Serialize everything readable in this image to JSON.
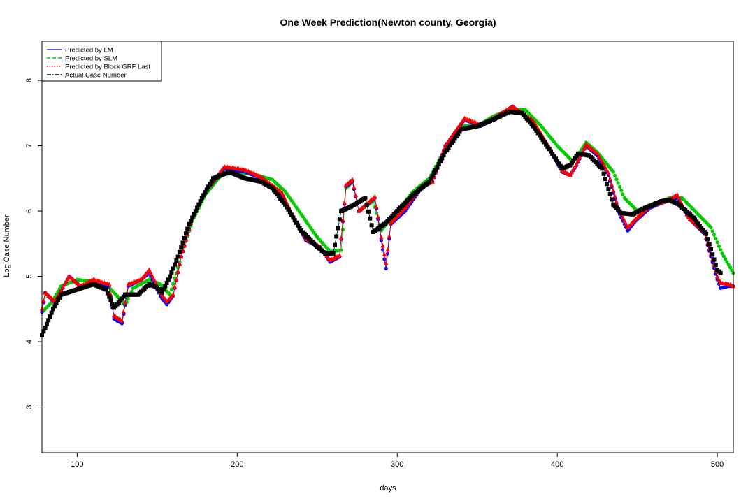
{
  "chart_data": {
    "type": "scatter",
    "title": "One Week Prediction(Newton county, Georgia)",
    "xlabel": "days",
    "ylabel": "Log Case Number",
    "xlim": [
      78,
      510
    ],
    "ylim": [
      2.3,
      8.6
    ],
    "x_ticks": [
      100,
      200,
      300,
      400,
      500
    ],
    "y_ticks": [
      3,
      4,
      5,
      6,
      7,
      8
    ],
    "grid": false,
    "legend_position": "top-left",
    "legend": [
      {
        "label": "Predicted by LM",
        "color": "#0000ff",
        "line": "solid"
      },
      {
        "label": "Predicted by SLM",
        "color": "#00cc00",
        "line": "dashed"
      },
      {
        "label": "Predicted by Block GRF Last",
        "color": "#ff0000",
        "line": "dotted"
      },
      {
        "label": "Actual Case Number",
        "color": "#000000",
        "line": "dashdot"
      }
    ],
    "series": [
      {
        "name": "Actual Case Number",
        "color": "#000000",
        "marker": "square",
        "knots": [
          [
            78,
            4.1
          ],
          [
            85,
            4.5
          ],
          [
            90,
            4.72
          ],
          [
            100,
            4.8
          ],
          [
            110,
            4.88
          ],
          [
            118,
            4.8
          ],
          [
            123,
            4.52
          ],
          [
            126,
            4.6
          ],
          [
            130,
            4.72
          ],
          [
            138,
            4.72
          ],
          [
            145,
            4.88
          ],
          [
            150,
            4.83
          ],
          [
            153,
            4.75
          ],
          [
            158,
            5.0
          ],
          [
            163,
            5.3
          ],
          [
            170,
            5.8
          ],
          [
            178,
            6.2
          ],
          [
            185,
            6.5
          ],
          [
            195,
            6.6
          ],
          [
            205,
            6.5
          ],
          [
            215,
            6.45
          ],
          [
            222,
            6.35
          ],
          [
            230,
            6.1
          ],
          [
            240,
            5.7
          ],
          [
            250,
            5.45
          ],
          [
            255,
            5.35
          ],
          [
            260,
            5.35
          ],
          [
            265,
            6.0
          ],
          [
            272,
            6.08
          ],
          [
            280,
            6.2
          ],
          [
            285,
            5.68
          ],
          [
            292,
            5.8
          ],
          [
            300,
            6.0
          ],
          [
            310,
            6.25
          ],
          [
            320,
            6.45
          ],
          [
            330,
            6.9
          ],
          [
            340,
            7.25
          ],
          [
            350,
            7.3
          ],
          [
            360,
            7.4
          ],
          [
            370,
            7.52
          ],
          [
            378,
            7.5
          ],
          [
            385,
            7.3
          ],
          [
            395,
            6.95
          ],
          [
            403,
            6.65
          ],
          [
            408,
            6.7
          ],
          [
            413,
            6.88
          ],
          [
            420,
            6.85
          ],
          [
            428,
            6.65
          ],
          [
            435,
            6.1
          ],
          [
            440,
            5.97
          ],
          [
            447,
            5.95
          ],
          [
            455,
            6.05
          ],
          [
            465,
            6.15
          ],
          [
            470,
            6.17
          ],
          [
            476,
            6.1
          ],
          [
            485,
            5.9
          ],
          [
            493,
            5.65
          ],
          [
            500,
            5.1
          ],
          [
            502,
            5.05
          ]
        ]
      },
      {
        "name": "Predicted by SLM",
        "color": "#00cc00",
        "marker": "circle",
        "knots": [
          [
            78,
            4.45
          ],
          [
            84,
            4.6
          ],
          [
            90,
            4.85
          ],
          [
            100,
            4.95
          ],
          [
            110,
            4.92
          ],
          [
            118,
            4.88
          ],
          [
            125,
            4.7
          ],
          [
            130,
            4.55
          ],
          [
            135,
            4.82
          ],
          [
            145,
            4.95
          ],
          [
            152,
            4.88
          ],
          [
            158,
            4.72
          ],
          [
            165,
            5.3
          ],
          [
            172,
            5.85
          ],
          [
            180,
            6.25
          ],
          [
            190,
            6.55
          ],
          [
            200,
            6.6
          ],
          [
            212,
            6.55
          ],
          [
            222,
            6.48
          ],
          [
            230,
            6.3
          ],
          [
            240,
            5.95
          ],
          [
            250,
            5.6
          ],
          [
            258,
            5.38
          ],
          [
            265,
            5.4
          ],
          [
            268,
            6.35
          ],
          [
            272,
            6.45
          ],
          [
            276,
            6.0
          ],
          [
            285,
            6.15
          ],
          [
            290,
            5.7
          ],
          [
            300,
            6.0
          ],
          [
            310,
            6.3
          ],
          [
            320,
            6.5
          ],
          [
            330,
            6.95
          ],
          [
            340,
            7.3
          ],
          [
            350,
            7.3
          ],
          [
            360,
            7.45
          ],
          [
            370,
            7.55
          ],
          [
            380,
            7.55
          ],
          [
            390,
            7.3
          ],
          [
            400,
            7.0
          ],
          [
            410,
            6.75
          ],
          [
            418,
            7.05
          ],
          [
            425,
            6.9
          ],
          [
            435,
            6.6
          ],
          [
            442,
            6.2
          ],
          [
            450,
            6.0
          ],
          [
            460,
            6.1
          ],
          [
            470,
            6.2
          ],
          [
            478,
            6.2
          ],
          [
            488,
            5.95
          ],
          [
            496,
            5.75
          ],
          [
            503,
            5.35
          ],
          [
            510,
            5.05
          ]
        ]
      },
      {
        "name": "Predicted by LM",
        "color": "#0000ff",
        "marker": "circle",
        "knots": [
          [
            78,
            4.45
          ],
          [
            80,
            4.75
          ],
          [
            86,
            4.6
          ],
          [
            95,
            5.0
          ],
          [
            102,
            4.85
          ],
          [
            110,
            4.9
          ],
          [
            120,
            4.85
          ],
          [
            123,
            4.35
          ],
          [
            128,
            4.28
          ],
          [
            132,
            4.85
          ],
          [
            140,
            4.95
          ],
          [
            145,
            5.05
          ],
          [
            152,
            4.7
          ],
          [
            156,
            4.57
          ],
          [
            160,
            4.7
          ],
          [
            165,
            5.3
          ],
          [
            172,
            5.9
          ],
          [
            180,
            6.3
          ],
          [
            192,
            6.65
          ],
          [
            205,
            6.6
          ],
          [
            215,
            6.5
          ],
          [
            228,
            6.25
          ],
          [
            235,
            5.9
          ],
          [
            243,
            5.55
          ],
          [
            252,
            5.45
          ],
          [
            258,
            5.22
          ],
          [
            264,
            5.3
          ],
          [
            268,
            6.38
          ],
          [
            272,
            6.45
          ],
          [
            276,
            6.0
          ],
          [
            286,
            6.2
          ],
          [
            290,
            5.55
          ],
          [
            293,
            5.12
          ],
          [
            296,
            5.8
          ],
          [
            305,
            6.0
          ],
          [
            315,
            6.35
          ],
          [
            322,
            6.45
          ],
          [
            330,
            7.0
          ],
          [
            342,
            7.4
          ],
          [
            352,
            7.3
          ],
          [
            360,
            7.4
          ],
          [
            372,
            7.6
          ],
          [
            385,
            7.35
          ],
          [
            395,
            6.95
          ],
          [
            403,
            6.6
          ],
          [
            408,
            6.55
          ],
          [
            412,
            6.7
          ],
          [
            418,
            7.0
          ],
          [
            425,
            6.85
          ],
          [
            432,
            6.55
          ],
          [
            438,
            6.0
          ],
          [
            444,
            5.7
          ],
          [
            449,
            5.85
          ],
          [
            458,
            6.05
          ],
          [
            468,
            6.15
          ],
          [
            475,
            6.2
          ],
          [
            482,
            5.9
          ],
          [
            492,
            5.65
          ],
          [
            500,
            4.95
          ],
          [
            502,
            4.82
          ],
          [
            507,
            4.85
          ],
          [
            510,
            4.85
          ]
        ]
      },
      {
        "name": "Predicted by Block GRF Last",
        "color": "#ff0000",
        "marker": "triangle",
        "knots": [
          [
            78,
            4.5
          ],
          [
            80,
            4.75
          ],
          [
            86,
            4.62
          ],
          [
            95,
            5.0
          ],
          [
            102,
            4.85
          ],
          [
            110,
            4.95
          ],
          [
            120,
            4.88
          ],
          [
            123,
            4.4
          ],
          [
            128,
            4.32
          ],
          [
            132,
            4.88
          ],
          [
            140,
            4.95
          ],
          [
            145,
            5.1
          ],
          [
            152,
            4.75
          ],
          [
            156,
            4.62
          ],
          [
            160,
            4.72
          ],
          [
            165,
            5.3
          ],
          [
            172,
            5.9
          ],
          [
            180,
            6.3
          ],
          [
            192,
            6.68
          ],
          [
            205,
            6.63
          ],
          [
            215,
            6.52
          ],
          [
            228,
            6.28
          ],
          [
            235,
            5.92
          ],
          [
            243,
            5.58
          ],
          [
            252,
            5.45
          ],
          [
            258,
            5.25
          ],
          [
            264,
            5.32
          ],
          [
            268,
            6.4
          ],
          [
            272,
            6.48
          ],
          [
            276,
            6.0
          ],
          [
            286,
            6.22
          ],
          [
            290,
            5.6
          ],
          [
            293,
            5.2
          ],
          [
            296,
            5.82
          ],
          [
            305,
            6.05
          ],
          [
            315,
            6.38
          ],
          [
            322,
            6.45
          ],
          [
            330,
            7.0
          ],
          [
            342,
            7.42
          ],
          [
            352,
            7.32
          ],
          [
            360,
            7.42
          ],
          [
            372,
            7.6
          ],
          [
            385,
            7.38
          ],
          [
            395,
            6.98
          ],
          [
            403,
            6.62
          ],
          [
            408,
            6.55
          ],
          [
            412,
            6.72
          ],
          [
            418,
            7.02
          ],
          [
            425,
            6.88
          ],
          [
            432,
            6.58
          ],
          [
            438,
            6.05
          ],
          [
            444,
            5.75
          ],
          [
            449,
            5.88
          ],
          [
            458,
            6.08
          ],
          [
            468,
            6.15
          ],
          [
            475,
            6.25
          ],
          [
            482,
            5.9
          ],
          [
            492,
            5.68
          ],
          [
            500,
            5.0
          ],
          [
            502,
            4.9
          ],
          [
            507,
            4.88
          ],
          [
            510,
            4.85
          ]
        ]
      }
    ]
  }
}
